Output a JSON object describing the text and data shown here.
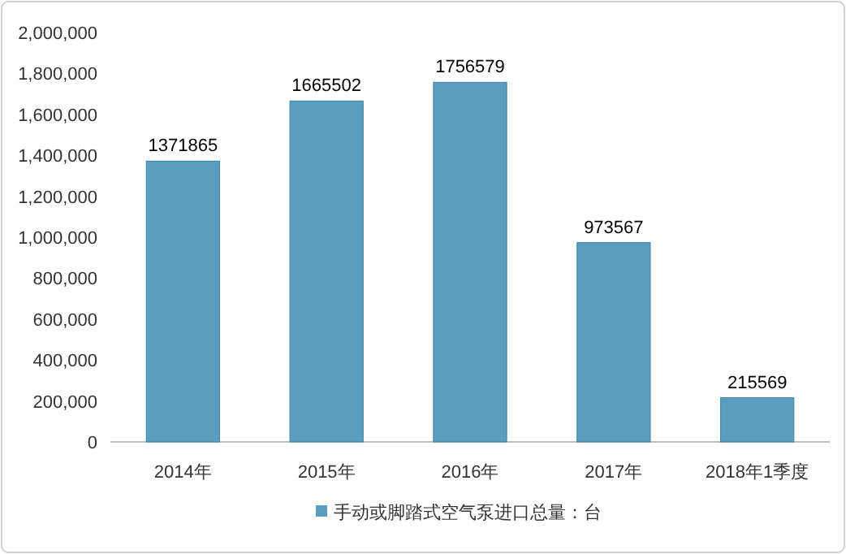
{
  "chart_data": {
    "type": "bar",
    "categories": [
      "2014年",
      "2015年",
      "2016年",
      "2017年",
      "2018年1季度"
    ],
    "series": [
      {
        "name": "手动或脚踏式空气泵进口总量：台",
        "color": "#5a9ebf",
        "values": [
          1371865,
          1665502,
          1756579,
          973567,
          215569
        ]
      }
    ],
    "ylim": [
      0,
      2000000
    ],
    "yticks": [
      {
        "value": 0,
        "label": "0"
      },
      {
        "value": 200000,
        "label": "200,000"
      },
      {
        "value": 400000,
        "label": "400,000"
      },
      {
        "value": 600000,
        "label": "600,000"
      },
      {
        "value": 800000,
        "label": "800,000"
      },
      {
        "value": 1000000,
        "label": "1,000,000"
      },
      {
        "value": 1200000,
        "label": "1,200,000"
      },
      {
        "value": 1400000,
        "label": "1,400,000"
      },
      {
        "value": 1600000,
        "label": "1,600,000"
      },
      {
        "value": 1800000,
        "label": "1,800,000"
      },
      {
        "value": 2000000,
        "label": "2,000,000"
      }
    ],
    "data_labels": true,
    "legend": "bottom"
  }
}
